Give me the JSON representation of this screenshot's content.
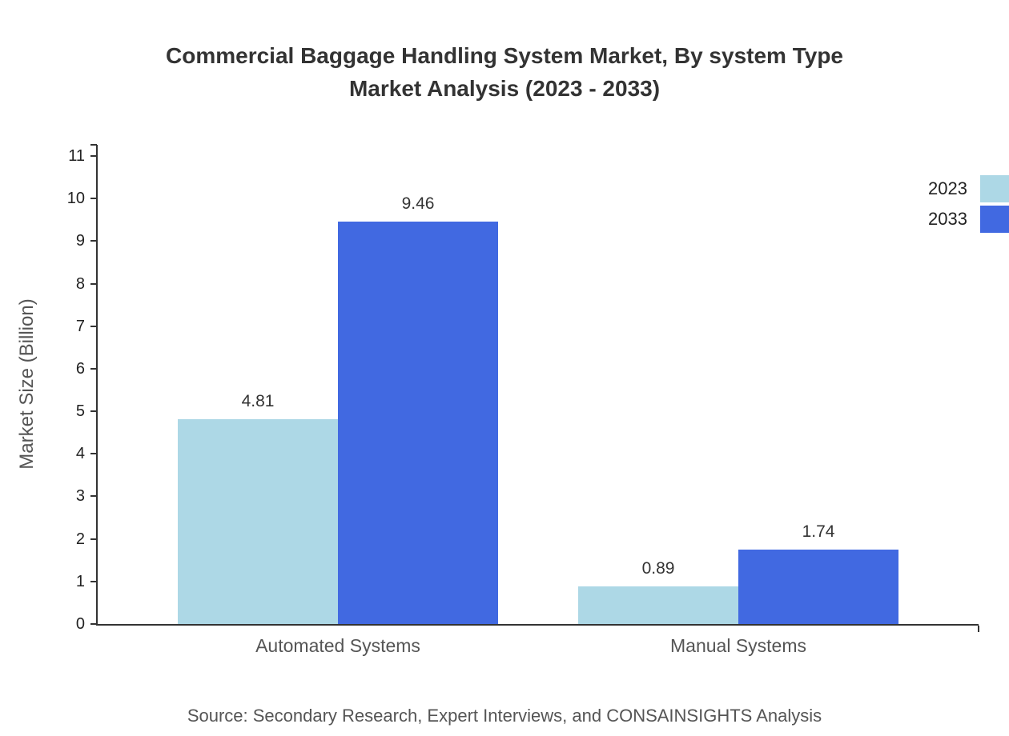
{
  "title": {
    "lines": [
      "Commercial Baggage Handling System Market, By system Type",
      "Market Analysis (2023 - 2033)"
    ]
  },
  "chart_data": {
    "type": "bar",
    "title": "Commercial Baggage Handling System Market, By system Type Market Analysis (2023 - 2033)",
    "categories": [
      "Automated Systems",
      "Manual Systems"
    ],
    "series": [
      {
        "name": "2023",
        "color": "#add8e6",
        "values": [
          4.81,
          0.89
        ]
      },
      {
        "name": "2033",
        "color": "#4169e1",
        "values": [
          9.46,
          1.74
        ]
      }
    ],
    "xlabel": "",
    "ylabel": "Market Size (Billion)",
    "ylim": [
      0,
      11
    ],
    "yticks": [
      0,
      1,
      2,
      3,
      4,
      5,
      6,
      7,
      8,
      9,
      10,
      11
    ],
    "grid": false,
    "legend_position": "top-right",
    "value_label_decimals": 2
  },
  "source": "Source: Secondary Research, Expert Interviews, and CONSAINSIGHTS Analysis"
}
